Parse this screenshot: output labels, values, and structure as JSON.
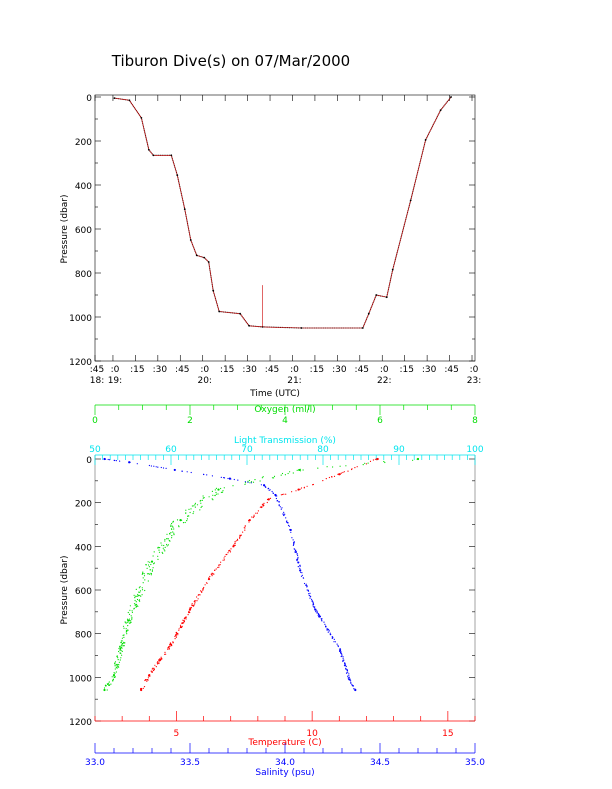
{
  "title": "Tiburon Dive(s) on 07/Mar/2000",
  "colors": {
    "axis": "#000000",
    "temperature": "#ff0000",
    "salinity": "#0000ff",
    "oxygen": "#00dd00",
    "transmission": "#00e5ee",
    "profile": "#cc0000"
  },
  "chart_data": [
    {
      "type": "line",
      "xlabel": "Time (UTC)",
      "ylabel": "Pressure (dbar)",
      "xlim": [
        "18:48",
        "23:02"
      ],
      "ylim": [
        1200,
        0
      ],
      "yticks": [
        "0",
        "200",
        "400",
        "600",
        "800",
        "1000",
        "1200"
      ],
      "xticks": [
        {
          "t": "18:48",
          "top": ":45",
          "bottom": "18:"
        },
        {
          "t": "19:00",
          "top": ":0",
          "bottom": "19:"
        },
        {
          "t": "19:15",
          "top": ":15",
          "bottom": ""
        },
        {
          "t": "19:30",
          "top": ":30",
          "bottom": ""
        },
        {
          "t": "19:45",
          "top": ":45",
          "bottom": ""
        },
        {
          "t": "20:00",
          "top": ":0",
          "bottom": "20:"
        },
        {
          "t": "20:15",
          "top": ":15",
          "bottom": ""
        },
        {
          "t": "20:30",
          "top": ":30",
          "bottom": ""
        },
        {
          "t": "20:45",
          "top": ":45",
          "bottom": ""
        },
        {
          "t": "21:00",
          "top": ":0",
          "bottom": "21:"
        },
        {
          "t": "21:15",
          "top": ":15",
          "bottom": ""
        },
        {
          "t": "21:30",
          "top": ":30",
          "bottom": ""
        },
        {
          "t": "21:45",
          "top": ":45",
          "bottom": ""
        },
        {
          "t": "22:00",
          "top": ":0",
          "bottom": "22:"
        },
        {
          "t": "22:15",
          "top": ":15",
          "bottom": ""
        },
        {
          "t": "22:30",
          "top": ":30",
          "bottom": ""
        },
        {
          "t": "22:45",
          "top": ":45",
          "bottom": ""
        },
        {
          "t": "23:00",
          "top": ":0",
          "bottom": "23:"
        }
      ],
      "series": [
        {
          "x": [
            "19:01",
            "19:11",
            "19:19",
            "19:24",
            "19:27",
            "19:39",
            "19:43",
            "19:48",
            "19:52",
            "19:56",
            "20:01",
            "20:04",
            "20:07",
            "20:11",
            "20:25",
            "20:31",
            "20:40",
            "21:06",
            "21:47",
            "21:51",
            "21:56",
            "22:03",
            "22:07",
            "22:19",
            "22:29",
            "22:39",
            "22:46"
          ],
          "y": [
            5,
            15,
            95,
            240,
            265,
            265,
            355,
            510,
            650,
            720,
            730,
            750,
            880,
            975,
            985,
            1040,
            1045,
            1050,
            1050,
            985,
            900,
            910,
            785,
            470,
            195,
            60,
            0
          ]
        }
      ],
      "annotations": [
        {
          "x": "20:40",
          "y_from": 1045,
          "y_to": 855
        }
      ]
    },
    {
      "type": "scatter",
      "ylabel": "Pressure (dbar)",
      "ylim": [
        1200,
        0
      ],
      "yticks": [
        "0",
        "200",
        "400",
        "600",
        "800",
        "1000",
        "1200"
      ],
      "axes": {
        "temperature": {
          "label": "Temperature (C)",
          "lim": [
            2,
            16
          ],
          "ticks": [
            "5",
            "10",
            "15"
          ]
        },
        "salinity": {
          "label": "Salinity (psu)",
          "lim": [
            33.0,
            35.0
          ],
          "ticks": [
            "33.0",
            "33.5",
            "34.0",
            "34.5",
            "35.0"
          ]
        },
        "oxygen": {
          "label": "Oxygen (ml/l)",
          "lim": [
            0,
            8
          ],
          "ticks": [
            "0",
            "2",
            "4",
            "6",
            "8"
          ]
        },
        "transmission": {
          "label": "Light Transmission (%)",
          "lim": [
            50,
            100
          ],
          "ticks": [
            "50",
            "60",
            "70",
            "80",
            "90",
            "100"
          ]
        }
      },
      "series": [
        {
          "name": "Temperature (C)",
          "x": [
            12.4,
            11.0,
            9.5,
            8.4,
            7.7,
            7.1,
            6.2,
            5.5,
            4.8,
            4.4,
            4.0,
            3.7
          ],
          "y": [
            0,
            70,
            140,
            185,
            280,
            400,
            550,
            690,
            850,
            920,
            990,
            1058
          ]
        },
        {
          "name": "Salinity (psu)",
          "x": [
            33.05,
            33.18,
            33.42,
            33.71,
            33.89,
            33.95,
            34.03,
            34.08,
            34.16,
            34.29,
            34.34,
            34.37
          ],
          "y": [
            0,
            15,
            50,
            90,
            120,
            165,
            325,
            510,
            690,
            875,
            1010,
            1058
          ]
        },
        {
          "name": "Oxygen (ml/l)",
          "x": [
            6.8,
            4.3,
            2.6,
            1.8,
            1.2,
            0.7,
            0.4,
            0.2
          ],
          "y": [
            0,
            50,
            140,
            280,
            470,
            740,
            990,
            1058
          ]
        }
      ]
    }
  ]
}
